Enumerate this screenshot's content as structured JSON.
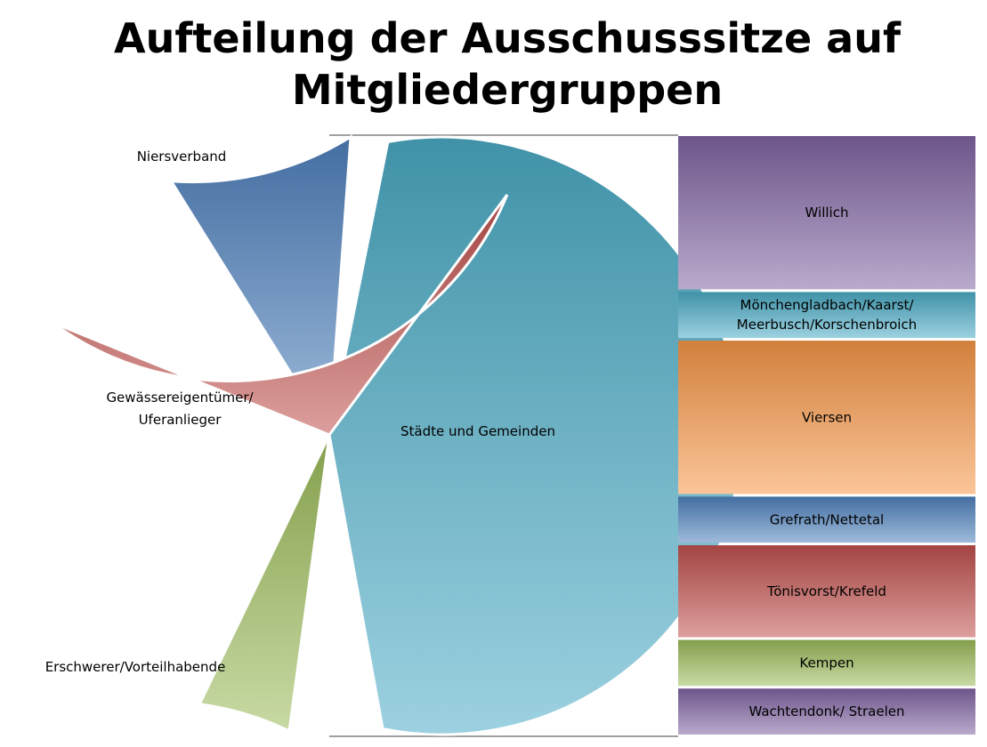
{
  "title": "Aufteilung der Ausschusssitze auf Mitgliedergruppen",
  "chart_data": [
    {
      "type": "pie",
      "title": "Aufteilung der Ausschusssitze auf Mitgliedergruppen",
      "slices": [
        {
          "label": "Städte und Gemeinden",
          "value": 56,
          "color": "#4BACC6"
        },
        {
          "label": "Erschwerer/Vorteilhabende",
          "value": 10,
          "color": "#4F81BD"
        },
        {
          "label": "Gewässereigentümer/ Uferanlieger",
          "value": 29,
          "color": "#C0504D"
        },
        {
          "label": "Niersverband",
          "value": 5,
          "color": "#9BBB59"
        }
      ]
    },
    {
      "type": "bar",
      "subtitle_of": "Städte und Gemeinden",
      "categories": [
        "Willich",
        "Mönchengladbach/Kaarst/ Meerbusch/Korschenbroich",
        "Viersen",
        "Grefrath/Nettetal",
        "Tönisvorst/Krefeld",
        "Kempen",
        "Wachtendonk/ Straelen"
      ],
      "values": [
        10,
        3,
        10,
        3,
        6,
        3,
        3
      ],
      "colors": [
        "#8064A2",
        "#4BACC6",
        "#F79646",
        "#4F81BD",
        "#C0504D",
        "#9BBB59",
        "#8064A2"
      ]
    }
  ]
}
